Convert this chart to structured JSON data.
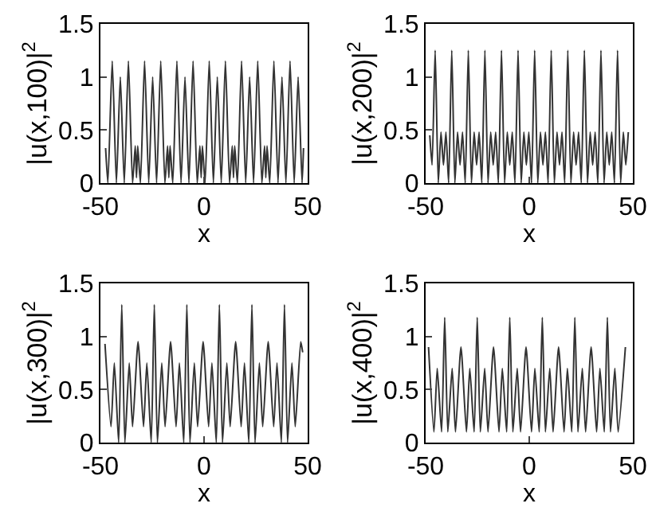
{
  "chart_data": [
    {
      "type": "line",
      "xlabel": "x",
      "ylabel": "|u(x,100)|$^{2}$",
      "xlim": [
        -50,
        50
      ],
      "ylim": [
        0,
        1.5
      ],
      "xticks": [
        -50,
        0,
        50
      ],
      "yticks": [
        0,
        0.5,
        1,
        1.5
      ],
      "grid": false,
      "color": "#333333",
      "x": [
        -47.5,
        -46.4,
        -44.3,
        -42.3,
        -40.4,
        -38.5,
        -36.5,
        -34.5,
        -33.2,
        -32.6,
        -32.0,
        -30.7,
        -28.7,
        -26.7,
        -24.8,
        -22.9,
        -20.9,
        -18.9,
        -17.6,
        -17.0,
        -16.4,
        -15.1,
        -13.1,
        -11.1,
        -9.2,
        -7.3,
        -5.3,
        -3.3,
        -2.0,
        -1.4,
        -0.8,
        0.5,
        2.5,
        4.5,
        6.4,
        8.3,
        10.3,
        12.3,
        13.6,
        14.2,
        14.8,
        16.1,
        18.1,
        20.1,
        22.0,
        23.9,
        25.9,
        27.9,
        29.2,
        29.8,
        30.4,
        31.7,
        33.7,
        35.7,
        37.6,
        39.5,
        41.5,
        43.5,
        45.4,
        47.3,
        48.0
      ],
      "values": [
        0.33,
        0,
        1.15,
        0,
        1.0,
        0,
        1.15,
        0,
        0.35,
        0.05,
        0.35,
        0,
        1.15,
        0,
        1.0,
        0,
        1.15,
        0,
        0.35,
        0.05,
        0.35,
        0,
        1.15,
        0,
        1.0,
        0,
        1.15,
        0,
        0.35,
        0.05,
        0.35,
        0,
        1.15,
        0,
        1.0,
        0,
        1.15,
        0,
        0.35,
        0.05,
        0.35,
        0,
        1.15,
        0,
        1.0,
        0,
        1.15,
        0,
        0.35,
        0.05,
        0.35,
        0,
        1.15,
        0,
        1.0,
        0,
        1.15,
        0,
        1.0,
        0,
        0.33
      ]
    },
    {
      "type": "line",
      "xlabel": "x",
      "ylabel": "|u(x,200)|$^{2}$",
      "xlim": [
        -50,
        50
      ],
      "ylim": [
        0,
        1.5
      ],
      "xticks": [
        -50,
        0,
        50
      ],
      "yticks": [
        0,
        0.5,
        1,
        1.5
      ],
      "grid": false,
      "color": "#333333",
      "x": [
        -48,
        -46.9,
        -45.4,
        -43.9,
        -42.6,
        -41.4,
        -40.2,
        -38.9,
        -37.4,
        -35.9,
        -34.6,
        -33.4,
        -32.2,
        -30.9,
        -29.4,
        -27.9,
        -26.6,
        -25.4,
        -24.2,
        -22.9,
        -21.4,
        -19.9,
        -18.6,
        -17.4,
        -16.2,
        -14.9,
        -13.4,
        -11.9,
        -10.6,
        -9.4,
        -8.2,
        -6.9,
        -5.4,
        -3.9,
        -2.6,
        -1.4,
        -0.2,
        1.1,
        2.6,
        4.1,
        5.4,
        6.6,
        7.8,
        9.1,
        10.6,
        12.1,
        13.4,
        14.6,
        15.8,
        17.1,
        18.6,
        20.1,
        21.4,
        22.6,
        23.8,
        25.1,
        26.6,
        28.1,
        29.4,
        30.6,
        31.8,
        33.1,
        34.6,
        36.1,
        37.4,
        38.6,
        39.8,
        41.1,
        42.6,
        44.1,
        45.4,
        46.6,
        47.8
      ],
      "values": [
        0.45,
        0.17,
        1.25,
        0,
        0.48,
        0.17,
        0.48,
        0,
        1.25,
        0,
        0.48,
        0.17,
        0.48,
        0,
        1.25,
        0,
        0.48,
        0.17,
        0.48,
        0,
        1.25,
        0,
        0.48,
        0.17,
        0.48,
        0,
        1.25,
        0,
        0.48,
        0.17,
        0.48,
        0,
        1.25,
        0,
        0.48,
        0.17,
        0.48,
        0,
        1.25,
        0,
        0.48,
        0.17,
        0.48,
        0,
        1.25,
        0,
        0.48,
        0.17,
        0.48,
        0,
        1.25,
        0,
        0.48,
        0.17,
        0.48,
        0,
        1.25,
        0,
        0.48,
        0.17,
        0.48,
        0,
        1.25,
        0,
        0.48,
        0.17,
        0.48,
        0,
        1.25,
        0,
        0.48,
        0.17,
        0.48
      ]
    },
    {
      "type": "line",
      "xlabel": "x",
      "ylabel": "|u(x,300)|$^{2}$",
      "xlim": [
        -50,
        50
      ],
      "ylim": [
        0,
        1.5
      ],
      "xticks": [
        -50,
        0,
        50
      ],
      "yticks": [
        0,
        0.5,
        1,
        1.5
      ],
      "grid": false,
      "color": "#333333",
      "x": [
        -47.8,
        -44.9,
        -43.3,
        -41.2,
        -39.7,
        -38.2,
        -36.1,
        -34.5,
        -31.85,
        -29.2,
        -27.6,
        -25.5,
        -24.0,
        -22.5,
        -20.4,
        -18.8,
        -16.15,
        -13.5,
        -11.9,
        -9.8,
        -8.3,
        -6.8,
        -4.7,
        -3.1,
        -0.45,
        2.2,
        3.8,
        5.9,
        7.4,
        8.9,
        11.0,
        12.6,
        15.25,
        17.9,
        19.5,
        21.6,
        23.1,
        24.6,
        26.7,
        28.3,
        30.95,
        33.6,
        35.2,
        37.3,
        38.8,
        40.3,
        42.4,
        44.0,
        46.65,
        47.6
      ],
      "values": [
        0.93,
        0.15,
        0.75,
        0,
        1.3,
        0,
        0.75,
        0.15,
        0.95,
        0.15,
        0.75,
        0,
        1.3,
        0,
        0.75,
        0.15,
        0.95,
        0.15,
        0.75,
        0,
        1.3,
        0,
        0.75,
        0.15,
        0.95,
        0.15,
        0.75,
        0,
        1.3,
        0,
        0.75,
        0.15,
        0.95,
        0.15,
        0.75,
        0,
        1.3,
        0,
        0.75,
        0.15,
        0.95,
        0.15,
        0.75,
        0,
        1.3,
        0,
        0.75,
        0.15,
        0.95,
        0.85
      ]
    },
    {
      "type": "line",
      "xlabel": "x",
      "ylabel": "|u(x,400)|$^{2}$",
      "xlim": [
        -50,
        50
      ],
      "ylim": [
        0,
        1.5
      ],
      "xticks": [
        -50,
        0,
        50
      ],
      "yticks": [
        0,
        0.5,
        1,
        1.5
      ],
      "grid": false,
      "color": "#333333",
      "x": [
        -48.6,
        -46.0,
        -44.4,
        -42.3,
        -40.8,
        -39.3,
        -37.2,
        -35.6,
        -32.95,
        -30.3,
        -28.7,
        -26.6,
        -25.1,
        -23.6,
        -21.5,
        -19.9,
        -17.25,
        -14.6,
        -13.0,
        -10.9,
        -9.4,
        -7.9,
        -5.8,
        -4.2,
        -1.55,
        1.1,
        2.7,
        4.8,
        6.3,
        7.8,
        9.9,
        11.5,
        14.15,
        16.8,
        18.4,
        20.5,
        22.0,
        23.5,
        25.6,
        27.2,
        29.85,
        32.5,
        34.1,
        36.2,
        37.7,
        39.2,
        41.3,
        42.9,
        46.4
      ],
      "values": [
        0.9,
        0.1,
        0.7,
        0.1,
        1.18,
        0.1,
        0.7,
        0.1,
        0.9,
        0.1,
        0.7,
        0.1,
        1.18,
        0.1,
        0.7,
        0.1,
        0.9,
        0.1,
        0.7,
        0.1,
        1.18,
        0.1,
        0.7,
        0.1,
        0.9,
        0.1,
        0.7,
        0.1,
        1.18,
        0.1,
        0.7,
        0.1,
        0.9,
        0.1,
        0.7,
        0.1,
        1.18,
        0.1,
        0.7,
        0.1,
        0.9,
        0.1,
        0.7,
        0.1,
        1.18,
        0.1,
        0.7,
        0.1,
        0.9
      ]
    }
  ]
}
